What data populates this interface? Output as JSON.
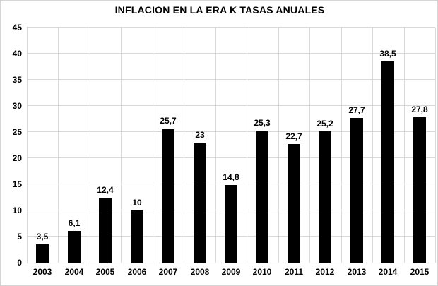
{
  "chart_data": {
    "type": "bar",
    "title": "INFLACION EN LA ERA K TASAS ANUALES",
    "categories": [
      "2003",
      "2004",
      "2005",
      "2006",
      "2007",
      "2008",
      "2009",
      "2010",
      "2011",
      "2012",
      "2013",
      "2014",
      "2015"
    ],
    "values": [
      3.5,
      6.1,
      12.4,
      10,
      25.7,
      23,
      14.8,
      25.3,
      22.7,
      25.2,
      27.7,
      38.5,
      27.8
    ],
    "value_labels": [
      "3,5",
      "6,1",
      "12,4",
      "10",
      "25,7",
      "23",
      "14,8",
      "25,3",
      "22,7",
      "25,2",
      "27,7",
      "38,5",
      "27,8"
    ],
    "xlabel": "",
    "ylabel": "",
    "ylim": [
      0,
      45
    ],
    "yticks": [
      0,
      5,
      10,
      15,
      20,
      25,
      30,
      35,
      40,
      45
    ],
    "grid": true,
    "legend": false,
    "bar_color": "#000000",
    "gridline_color": "#d9d9d9",
    "text_color": "#000000",
    "background_color": "#ffffff"
  }
}
